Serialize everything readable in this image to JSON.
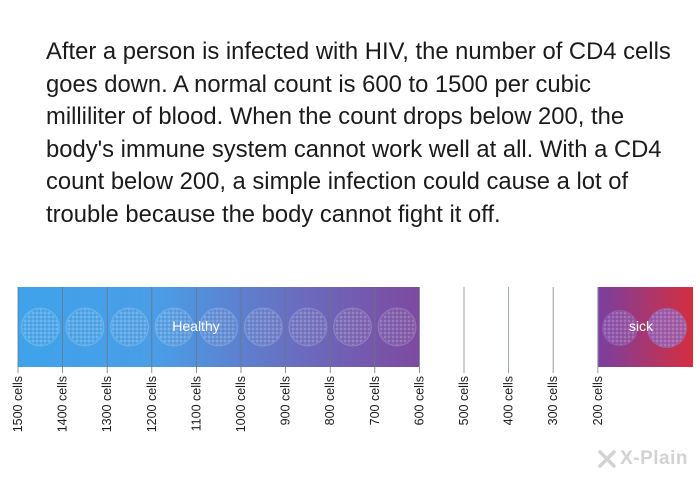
{
  "paragraph": "After a person is infected with HIV, the number of CD4 cells goes down. A normal count is 600 to 1500 per cubic milliliter of blood. When the count drops below 200, the body's immune system cannot work well at all. With a CD4 count below 200, a simple infection could cause a lot of trouble because the body cannot fight it off.",
  "scale": {
    "ticks": [
      "1500 cells",
      "1400 cells",
      "1300 cells",
      "1200 cells",
      "1100 cells",
      "1000 cells",
      "900 cells",
      "800 cells",
      "700 cells",
      "600 cells",
      "500 cells",
      "400 cells",
      "300 cells",
      "200 cells"
    ],
    "healthy_label": "Healthy",
    "sick_label": "sick"
  },
  "colors": {
    "healthy_start": "#3ea3ea",
    "healthy_end": "#7d4aa0",
    "sick_start": "#7a3fa0",
    "sick_end": "#d42e3e",
    "divider": "#7a8a9a"
  },
  "logo": {
    "text": "X-Plain",
    "icon": "x-plain-logo-icon"
  }
}
